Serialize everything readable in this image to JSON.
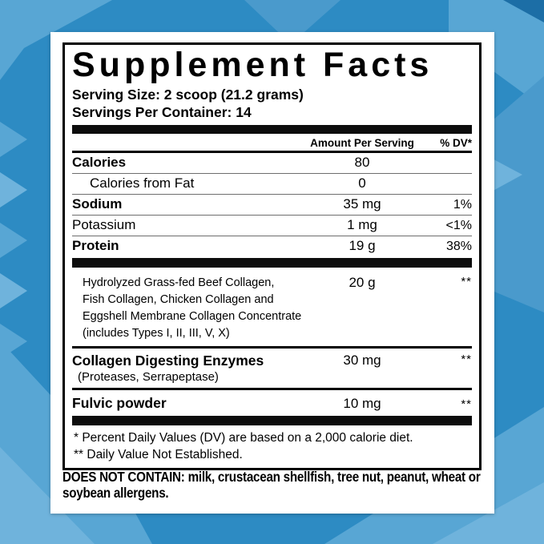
{
  "colors": {
    "background": "#2d8bc3",
    "shape_light": "#58a6d4",
    "shape_lighter": "#6fb3dc",
    "shape_soft": "#4a9acc",
    "shape_dark": "#1c6ea6",
    "label_bg": "#ffffff",
    "border": "#000000",
    "text": "#000000"
  },
  "facts": {
    "title": "Supplement Facts",
    "serving_size": "Serving Size: 2 scoop (21.2 grams)",
    "servings_per_container": "Servings Per Container: 14",
    "columns": {
      "amount_header": "Amount Per Serving",
      "dv_header": "% DV*"
    },
    "rows": [
      {
        "name": "Calories",
        "amount": "80",
        "dv": ""
      },
      {
        "name": "Calories from Fat",
        "amount": "0",
        "dv": ""
      },
      {
        "name": "Sodium",
        "amount": "35 mg",
        "dv": "1%"
      },
      {
        "name": "Potassium",
        "amount": "1 mg",
        "dv": "<1%"
      },
      {
        "name": "Protein",
        "amount": "19 g",
        "dv": "38%"
      }
    ],
    "blend": {
      "name": "Hydrolyzed Grass-fed Beef Collagen,\nFish Collagen, Chicken Collagen and\nEggshell Membrane Collagen Concentrate\n(includes Types I, II, III, V, X)",
      "amount": "20 g",
      "dv": "**"
    },
    "enzymes": {
      "name": "Collagen Digesting Enzymes",
      "sub": "(Proteases, Serrapeptase)",
      "amount": "30 mg",
      "dv": "**"
    },
    "fulvic": {
      "name": "Fulvic powder",
      "amount": "10 mg",
      "dv": "**"
    },
    "footnotes": [
      "* Percent Daily Values (DV) are based on a 2,000 calorie diet.",
      "** Daily Value Not Established."
    ],
    "allergen": "DOES NOT CONTAIN: milk, crustacean shellfish, tree nut, peanut, wheat or\nsoybean allergens."
  }
}
